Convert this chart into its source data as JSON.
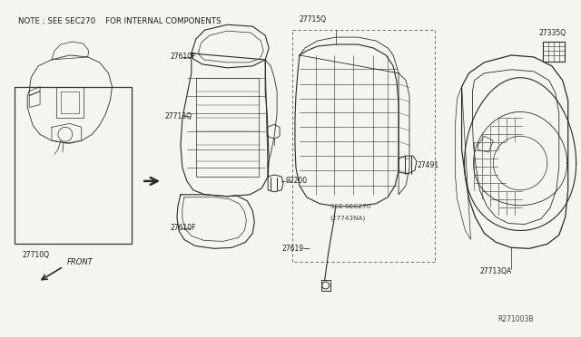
{
  "bg_color": "#f5f5f0",
  "note_text": "NOTE ; SEE SEC270    FOR INTERNAL COMPONENTS",
  "front_label": "FRONT",
  "ref_code": "R271003B",
  "line_color": "#2a2a2a",
  "label_color": "#1a1a1a",
  "dashed_color": "#555555",
  "fig_w": 6.4,
  "fig_h": 3.72,
  "dpi": 100
}
